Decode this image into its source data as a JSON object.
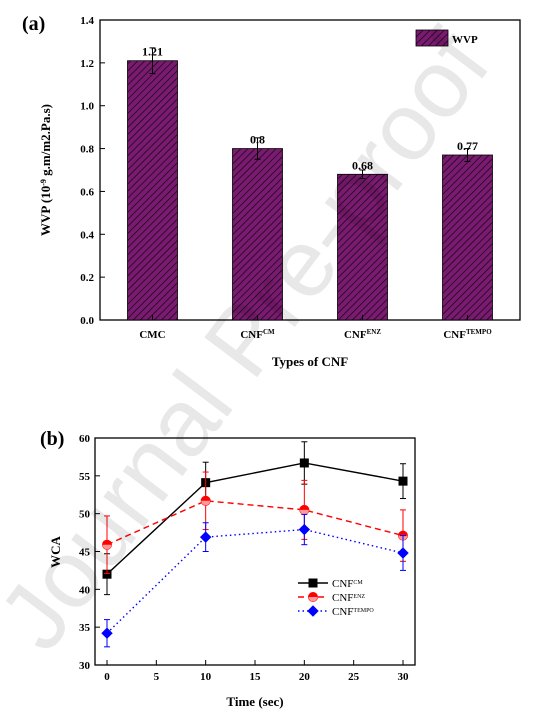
{
  "panels": {
    "a_label": "(a)",
    "b_label": "(b)"
  },
  "watermark": "Journal Pre-proof",
  "chart_data": [
    {
      "type": "bar",
      "categories": [
        "CMC",
        "CNF^CM",
        "CNF^ENZ",
        "CNF^TEMPO"
      ],
      "values": [
        1.21,
        0.8,
        0.68,
        0.77
      ],
      "errors": [
        0.06,
        0.05,
        0.02,
        0.03
      ],
      "data_labels": [
        "1.21",
        "0.8",
        "0.68",
        "0.77"
      ],
      "ylabel": "WVP (10^-9 g.m/m2.Pa.s)",
      "xlabel": "Types of CNF",
      "ylim": [
        0,
        1.4
      ],
      "yticks": [
        "0.0",
        "0.2",
        "0.4",
        "0.6",
        "0.8",
        "1.0",
        "1.2",
        "1.4"
      ],
      "legend": "WVP",
      "legend_position": "top-right",
      "bar_color": "#7a1a70",
      "hatch": "diagonal"
    },
    {
      "type": "line",
      "x": [
        0,
        10,
        20,
        30
      ],
      "xlabel": "Time (sec)",
      "ylabel": "WCA",
      "xlim": [
        0,
        30
      ],
      "ylim": [
        30,
        60
      ],
      "xticks": [
        "0",
        "5",
        "10",
        "15",
        "20",
        "25",
        "30"
      ],
      "yticks": [
        "30",
        "35",
        "40",
        "45",
        "50",
        "55",
        "60"
      ],
      "legend_position": "right",
      "series": [
        {
          "name": "CNF^CM",
          "values": [
            42.0,
            54.1,
            56.7,
            54.3
          ],
          "errors": [
            2.7,
            2.7,
            2.8,
            2.3
          ],
          "color": "#000000",
          "marker": "square",
          "dash": "solid"
        },
        {
          "name": "CNF^ENZ",
          "values": [
            45.9,
            51.7,
            50.5,
            47.1
          ],
          "errors": [
            3.8,
            3.8,
            3.9,
            3.4
          ],
          "color": "#ff0000",
          "marker": "circle",
          "dash": "dashed"
        },
        {
          "name": "CNF^TEMPO",
          "values": [
            34.2,
            46.9,
            47.9,
            44.8
          ],
          "errors": [
            1.8,
            1.9,
            2.0,
            2.3
          ],
          "color": "#0000ff",
          "marker": "diamond",
          "dash": "dotted"
        }
      ]
    }
  ]
}
